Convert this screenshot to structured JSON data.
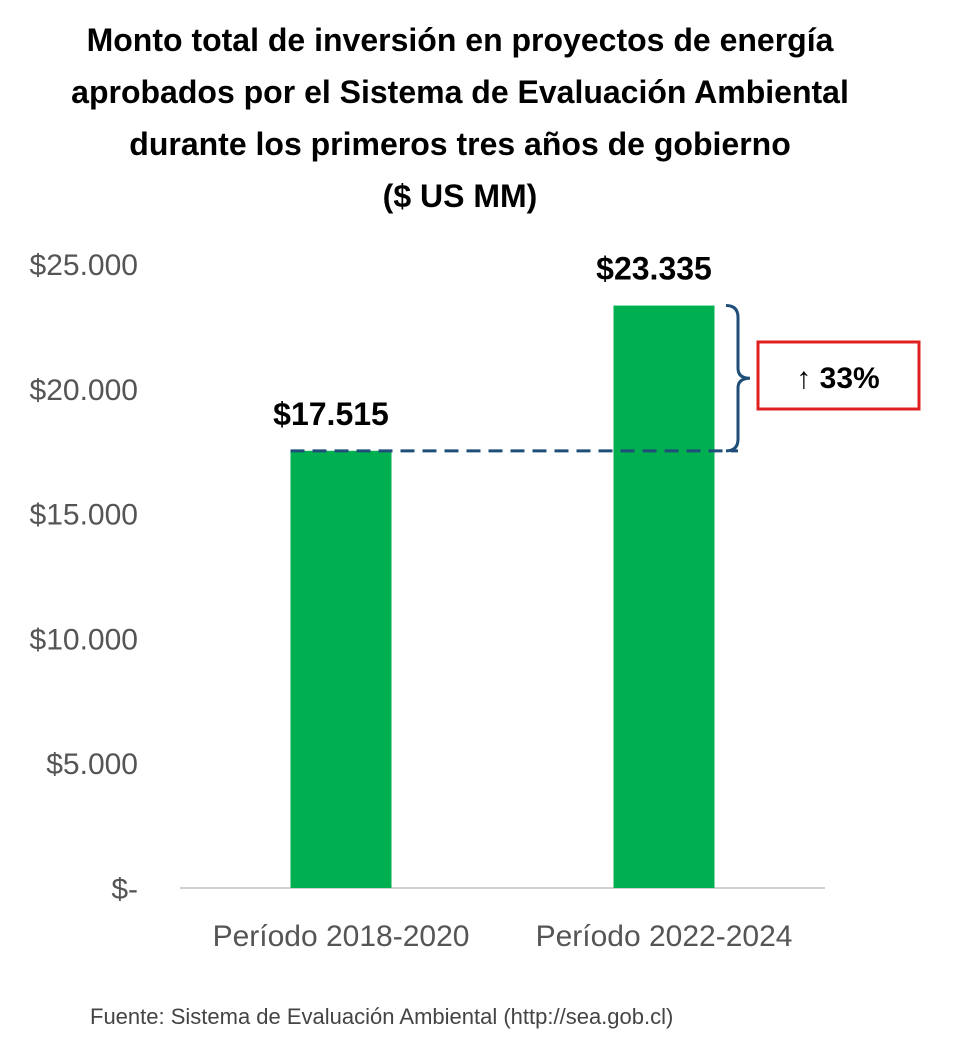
{
  "chart_data": {
    "type": "bar",
    "title_lines": [
      "Monto total de inversión en proyectos de energía",
      "aprobados por el Sistema de Evaluación Ambiental",
      "durante los primeros tres años de gobierno",
      "($ US MM)"
    ],
    "categories": [
      "Período 2018-2020",
      "Período 2022-2024"
    ],
    "values": [
      17515,
      23335
    ],
    "value_labels": [
      "$17.515",
      "$23.335"
    ],
    "ylim": [
      0,
      25000
    ],
    "yticks": [
      0,
      5000,
      10000,
      15000,
      20000,
      25000
    ],
    "ytick_labels": [
      "$-",
      "$5.000",
      "$10.000",
      "$15.000",
      "$20.000",
      "$25.000"
    ],
    "xlabel": "",
    "ylabel": "",
    "grid": false,
    "bar_color": "#00B050",
    "reference_line_value": 17515,
    "reference_line_color": "#1F4E79",
    "annotation": "↑ 33%",
    "annotation_color": "#E02020"
  },
  "source": "Fuente: Sistema de Evaluación Ambiental (http://sea.gob.cl)"
}
